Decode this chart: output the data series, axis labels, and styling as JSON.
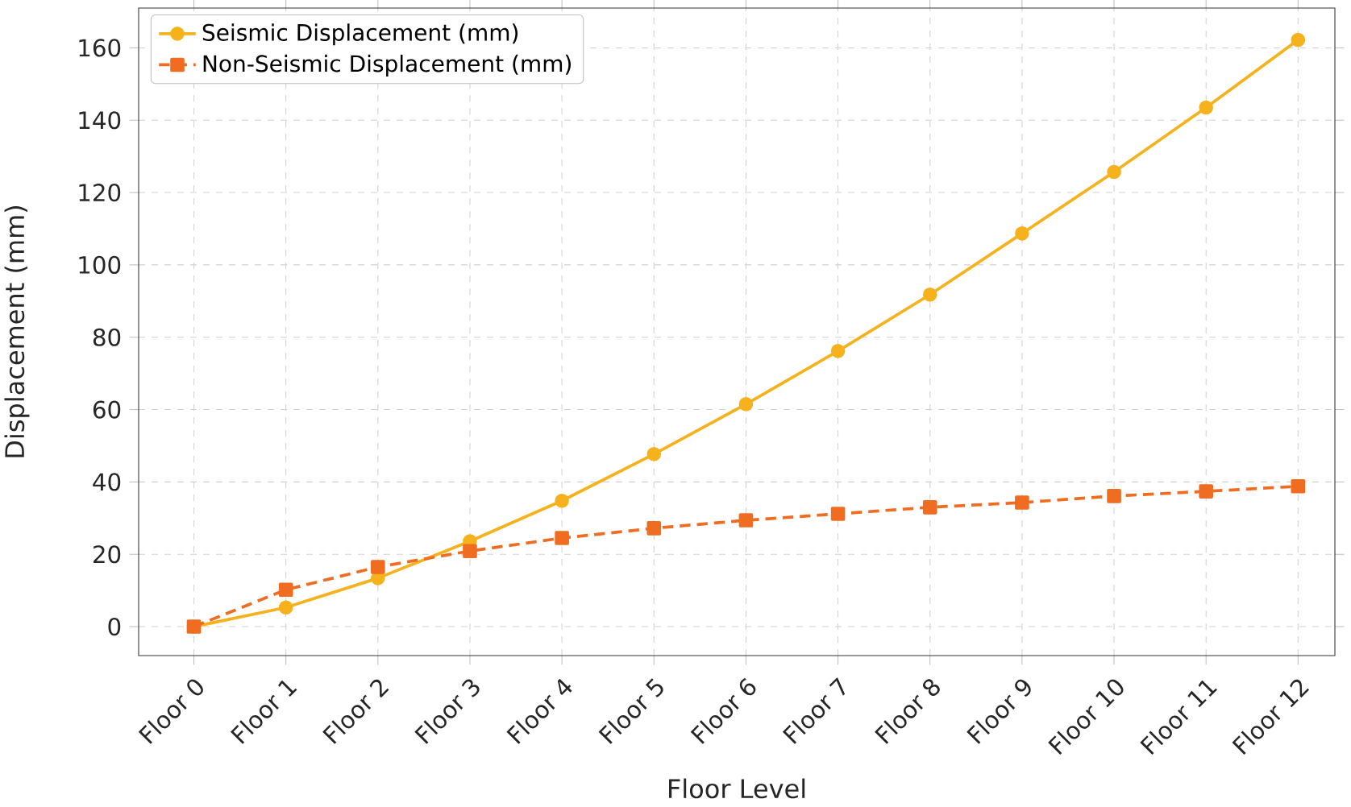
{
  "chart_data": {
    "type": "line",
    "xlabel": "Floor Level",
    "ylabel": "Displacement (mm)",
    "categories": [
      "Floor 0",
      "Floor 1",
      "Floor 2",
      "Floor 3",
      "Floor 4",
      "Floor 5",
      "Floor 6",
      "Floor 7",
      "Floor 8",
      "Floor 9",
      "Floor 10",
      "Floor 11",
      "Floor 12"
    ],
    "series": [
      {
        "name": "Seismic Displacement (mm)",
        "color": "#f5b21c",
        "marker": "circle",
        "line_style": "solid",
        "values": [
          0,
          5.3,
          13.4,
          23.6,
          34.8,
          47.7,
          61.5,
          76.2,
          91.8,
          108.7,
          125.7,
          143.5,
          162.2
        ]
      },
      {
        "name": "Non-Seismic Displacement (mm)",
        "color": "#ef6c21",
        "marker": "square",
        "line_style": "dashed",
        "values": [
          0,
          10.2,
          16.5,
          20.9,
          24.5,
          27.2,
          29.4,
          31.2,
          33.0,
          34.3,
          36.1,
          37.4,
          38.8
        ]
      }
    ],
    "ylim": [
      -8,
      171
    ],
    "yticks": [
      0,
      20,
      40,
      60,
      80,
      100,
      120,
      140,
      160
    ],
    "grid": true,
    "legend": "top left"
  }
}
